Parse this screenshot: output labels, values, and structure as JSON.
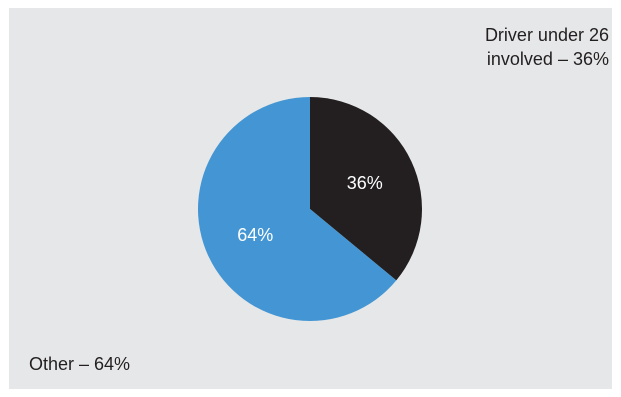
{
  "chart_data": {
    "type": "pie",
    "slices": [
      {
        "value": 36,
        "label": "36%",
        "color": "#231f20"
      },
      {
        "value": 64,
        "label": "64%",
        "color": "#4396d3"
      }
    ],
    "annotations": {
      "top_line1": "Driver under 26",
      "top_line2": "involved – 36%",
      "bottom": "Other – 64%"
    },
    "background": "#e6e7e8"
  }
}
